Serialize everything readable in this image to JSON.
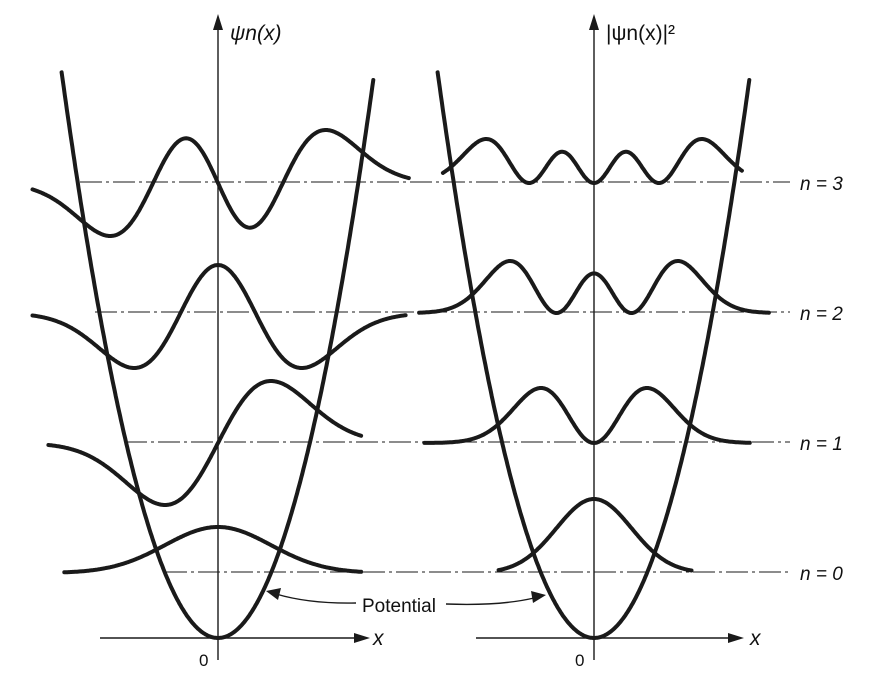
{
  "left_panel": {
    "y_axis_label": "ψn(x)",
    "x_axis_label": "x",
    "origin_label": "0"
  },
  "right_panel": {
    "y_axis_label": "|ψn(x)|²",
    "x_axis_label": "x",
    "origin_label": "0"
  },
  "states": [
    {
      "n": 0,
      "label": "n = 0"
    },
    {
      "n": 1,
      "label": "n = 1"
    },
    {
      "n": 2,
      "label": "n = 2"
    },
    {
      "n": 3,
      "label": "n = 3"
    }
  ],
  "annotation": {
    "text": "Potential"
  }
}
